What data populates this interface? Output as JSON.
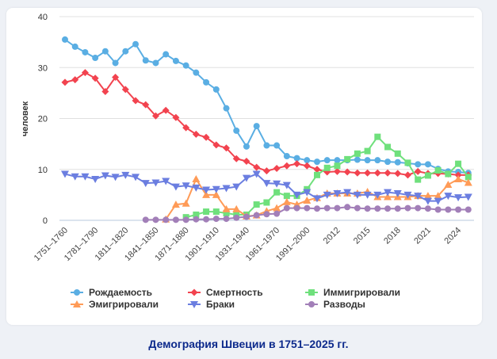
{
  "chart_data": {
    "type": "line",
    "title": "Демография Швеции в 1751–2025 гг.",
    "xlabel": "",
    "ylabel": "человек",
    "ylim": [
      0,
      40
    ],
    "yticks": [
      "0",
      "10",
      "20",
      "30",
      "40"
    ],
    "grid": true,
    "legend_position": "bottom",
    "categories": [
      "1751–1760",
      "1761–1770",
      "1771–1780",
      "1781–1790",
      "1791–1800",
      "1801–1810",
      "1811–1820",
      "1821–1830",
      "1831–1840",
      "1841–1850",
      "1851–1860",
      "1861–1870",
      "1871–1880",
      "1881–1890",
      "1891–1900",
      "1901–1910",
      "1911–1920",
      "1921–1930",
      "1931–1940",
      "1941–1950",
      "1951–1960",
      "1961–1970",
      "1971–1980",
      "1981–1990",
      "1991–2000",
      "2001–2010",
      "2011",
      "2012",
      "2013",
      "2014",
      "2015",
      "2016",
      "2017",
      "2018",
      "2019",
      "2020",
      "2021",
      "2022",
      "2023",
      "2024",
      "2025"
    ],
    "xtick_labels": [
      "1751–1760",
      "1781–1790",
      "1811–1820",
      "1841–1850",
      "1871–1880",
      "1901–1910",
      "1931–1940",
      "1961–1970",
      "1991–2000",
      "2012",
      "2015",
      "2018",
      "2021",
      "2024"
    ],
    "series": [
      {
        "name": "Рождаемость",
        "color": "#5aaee3",
        "marker": "circle",
        "values": [
          35.5,
          34.1,
          33.0,
          31.9,
          33.2,
          30.9,
          33.2,
          34.6,
          31.4,
          30.9,
          32.6,
          31.3,
          30.4,
          29.0,
          27.1,
          25.7,
          22.0,
          17.6,
          14.5,
          18.5,
          14.7,
          14.7,
          12.6,
          12.2,
          11.8,
          11.5,
          11.8,
          11.8,
          11.8,
          11.9,
          11.8,
          11.8,
          11.5,
          11.4,
          11.2,
          11.0,
          11.0,
          10.1,
          9.6,
          9.5,
          9.3
        ]
      },
      {
        "name": "Смертность",
        "color": "#f2434f",
        "marker": "diamond",
        "values": [
          27.1,
          27.6,
          29.0,
          27.9,
          25.3,
          28.1,
          25.7,
          23.5,
          22.7,
          20.5,
          21.6,
          20.2,
          18.2,
          16.9,
          16.3,
          14.8,
          14.2,
          12.1,
          11.6,
          10.4,
          9.7,
          10.2,
          10.7,
          11.1,
          10.7,
          10.0,
          9.5,
          9.6,
          9.5,
          9.3,
          9.3,
          9.3,
          9.3,
          9.2,
          8.9,
          9.6,
          9.2,
          9.2,
          9.1,
          8.9,
          8.9
        ]
      },
      {
        "name": "Иммигрировали",
        "color": "#6fe07c",
        "marker": "square",
        "values": [
          null,
          null,
          null,
          null,
          null,
          null,
          null,
          null,
          null,
          null,
          null,
          null,
          0.6,
          1.1,
          1.7,
          1.7,
          1.4,
          1.1,
          1.1,
          3.1,
          3.5,
          5.5,
          4.8,
          4.8,
          6.1,
          8.9,
          10.3,
          10.7,
          12.0,
          13.1,
          13.6,
          16.4,
          14.4,
          13.1,
          11.3,
          8.0,
          8.8,
          9.8,
          9.1,
          11.1,
          8.5
        ]
      },
      {
        "name": "Эмигрировали",
        "color": "#ff9b57",
        "marker": "triangle-up",
        "values": [
          null,
          null,
          null,
          null,
          null,
          null,
          null,
          null,
          null,
          null,
          0.2,
          3.1,
          3.3,
          8.1,
          5.0,
          5.0,
          2.2,
          2.2,
          0.8,
          1.0,
          1.8,
          2.4,
          3.6,
          3.1,
          3.9,
          4.4,
          5.3,
          5.3,
          5.3,
          5.3,
          5.6,
          4.6,
          4.6,
          4.6,
          4.6,
          4.8,
          4.8,
          4.8,
          7.0,
          8.1,
          7.4
        ]
      },
      {
        "name": "Браки",
        "color": "#6b7ee0",
        "marker": "triangle-down",
        "values": [
          9.1,
          8.6,
          8.6,
          8.1,
          8.8,
          8.5,
          8.9,
          8.5,
          7.3,
          7.4,
          7.7,
          6.6,
          6.8,
          6.4,
          6.0,
          6.1,
          6.3,
          6.6,
          8.3,
          9.1,
          7.3,
          7.2,
          6.9,
          5.0,
          5.5,
          4.3,
          5.0,
          5.3,
          5.5,
          5.0,
          5.0,
          5.0,
          5.5,
          5.3,
          5.0,
          4.8,
          3.8,
          3.8,
          4.8,
          4.5,
          4.6
        ]
      },
      {
        "name": "Разводы",
        "color": "#a27fb8",
        "marker": "circle",
        "values": [
          null,
          null,
          null,
          null,
          null,
          null,
          null,
          null,
          0.1,
          0.1,
          0.1,
          0.1,
          0.1,
          0.2,
          0.2,
          0.3,
          0.3,
          0.5,
          0.7,
          1.0,
          1.2,
          1.3,
          2.4,
          2.4,
          2.4,
          2.3,
          2.4,
          2.4,
          2.6,
          2.4,
          2.3,
          2.3,
          2.3,
          2.3,
          2.4,
          2.4,
          2.3,
          2.1,
          2.1,
          2.1,
          2.1
        ]
      }
    ]
  }
}
